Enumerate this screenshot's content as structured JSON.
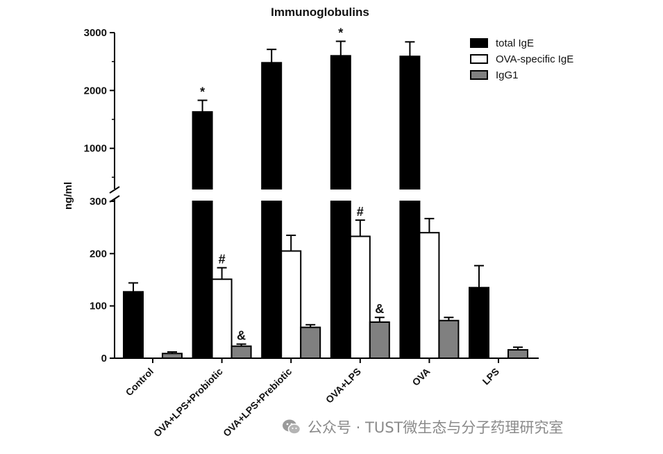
{
  "chart_data": {
    "type": "bar",
    "title": "Immunoglobulins",
    "ylabel": "ng/ml",
    "y_axis_break": true,
    "ylim_lower": [
      0,
      300
    ],
    "ylim_upper": [
      300,
      3000
    ],
    "yticks_lower": [
      "0",
      "100",
      "200",
      "300"
    ],
    "yticks_upper": [
      "1000",
      "2000",
      "3000"
    ],
    "legend_position": "top-right",
    "categories": [
      "Control",
      "OVA+LPS+Probiotic",
      "OVA+LPS+Prebiotic",
      "OVA+LPS",
      "OVA",
      "LPS"
    ],
    "series": [
      {
        "name": "total IgE",
        "color": "#000000",
        "values": [
          127,
          1630,
          2480,
          2600,
          2590,
          135
        ],
        "errors": [
          17,
          200,
          230,
          250,
          250,
          42
        ],
        "annotations": [
          "",
          "*",
          "",
          "*",
          "",
          ""
        ]
      },
      {
        "name": "OVA-specific IgE",
        "color": "#ffffff",
        "values": [
          0,
          151,
          205,
          233,
          240,
          0
        ],
        "errors": [
          0,
          22,
          30,
          31,
          27,
          0
        ],
        "annotations": [
          "",
          "#",
          "",
          "#",
          "",
          ""
        ]
      },
      {
        "name": "IgG1",
        "color": "#808080",
        "values": [
          9,
          23,
          59,
          69,
          72,
          16
        ],
        "errors": [
          3,
          4,
          5,
          9,
          6,
          5
        ],
        "annotations": [
          "",
          "&",
          "",
          "&",
          "",
          ""
        ]
      }
    ]
  },
  "watermark": {
    "icon": "wechat-icon",
    "text": "公众号 · TUST微生态与分子药理研究室"
  }
}
